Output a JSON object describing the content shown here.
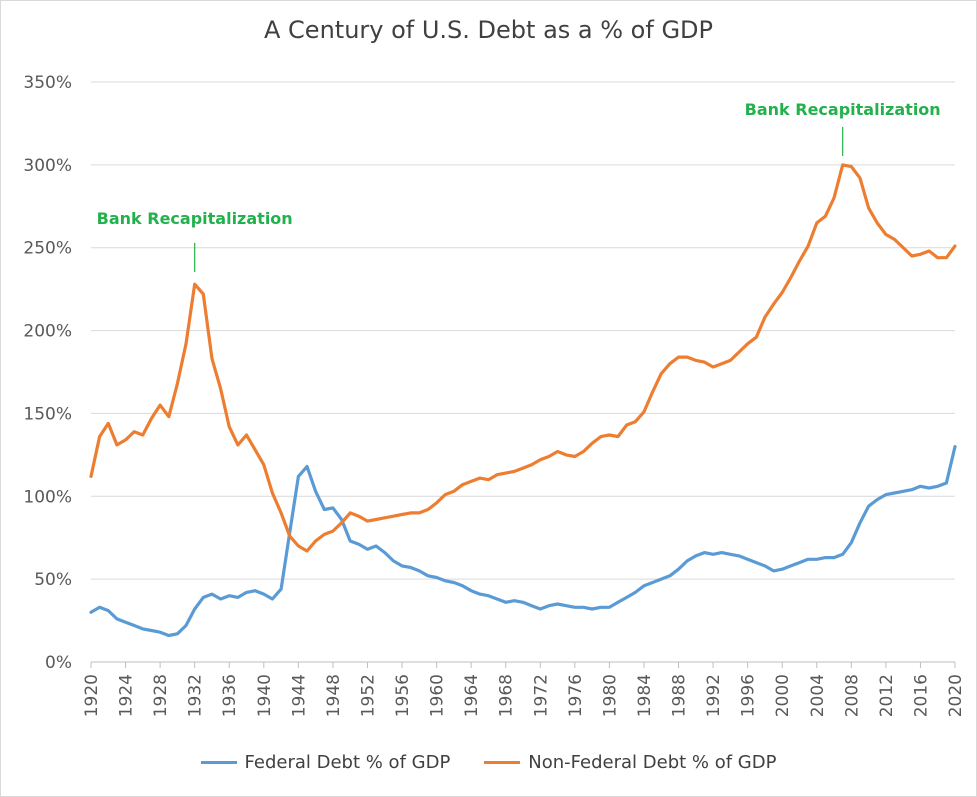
{
  "colors": {
    "federal": "#5b9bd5",
    "nonfederal": "#ed7d31",
    "annotation": "#22b14c",
    "grid": "#d9d9d9"
  },
  "chart_data": {
    "type": "line",
    "title": "A Century of U.S. Debt as a % of GDP",
    "xlabel": "",
    "ylabel": "",
    "xlim": [
      1920,
      2020
    ],
    "ylim": [
      0,
      350
    ],
    "y_ticks": [
      "0%",
      "50%",
      "100%",
      "150%",
      "200%",
      "250%",
      "300%",
      "350%"
    ],
    "x_ticks": [
      "1920",
      "1924",
      "1928",
      "1932",
      "1936",
      "1940",
      "1944",
      "1948",
      "1952",
      "1956",
      "1960",
      "1964",
      "1968",
      "1972",
      "1976",
      "1980",
      "1984",
      "1988",
      "1992",
      "1996",
      "2000",
      "2004",
      "2008",
      "2012",
      "2016",
      "2020"
    ],
    "grid": "horizontal",
    "legend_position": "bottom",
    "x": [
      1920,
      1921,
      1922,
      1923,
      1924,
      1925,
      1926,
      1927,
      1928,
      1929,
      1930,
      1931,
      1932,
      1933,
      1934,
      1935,
      1936,
      1937,
      1938,
      1939,
      1940,
      1941,
      1942,
      1943,
      1944,
      1945,
      1946,
      1947,
      1948,
      1949,
      1950,
      1951,
      1952,
      1953,
      1954,
      1955,
      1956,
      1957,
      1958,
      1959,
      1960,
      1961,
      1962,
      1963,
      1964,
      1965,
      1966,
      1967,
      1968,
      1969,
      1970,
      1971,
      1972,
      1973,
      1974,
      1975,
      1976,
      1977,
      1978,
      1979,
      1980,
      1981,
      1982,
      1983,
      1984,
      1985,
      1986,
      1987,
      1988,
      1989,
      1990,
      1991,
      1992,
      1993,
      1994,
      1995,
      1996,
      1997,
      1998,
      1999,
      2000,
      2001,
      2002,
      2003,
      2004,
      2005,
      2006,
      2007,
      2008,
      2009,
      2010,
      2011,
      2012,
      2013,
      2014,
      2015,
      2016,
      2017,
      2018,
      2019,
      2020
    ],
    "series": [
      {
        "name": "Federal Debt % of GDP",
        "color": "#5b9bd5",
        "values": [
          30,
          33,
          31,
          26,
          24,
          22,
          20,
          19,
          18,
          16,
          17,
          22,
          32,
          39,
          41,
          38,
          40,
          39,
          42,
          43,
          41,
          38,
          44,
          78,
          112,
          118,
          103,
          92,
          93,
          86,
          73,
          71,
          68,
          70,
          66,
          61,
          58,
          57,
          55,
          52,
          51,
          49,
          48,
          46,
          43,
          41,
          40,
          38,
          36,
          37,
          36,
          34,
          32,
          34,
          35,
          34,
          33,
          33,
          32,
          33,
          33,
          36,
          39,
          42,
          46,
          48,
          50,
          52,
          56,
          61,
          64,
          66,
          65,
          66,
          65,
          64,
          62,
          60,
          58,
          55,
          56,
          58,
          60,
          62,
          62,
          63,
          63,
          65,
          72,
          84,
          94,
          98,
          101,
          102,
          103,
          104,
          106,
          105,
          106,
          108,
          130
        ]
      },
      {
        "name": "Non-Federal Debt % of GDP",
        "color": "#ed7d31",
        "values": [
          112,
          136,
          144,
          131,
          134,
          139,
          137,
          147,
          155,
          148,
          168,
          192,
          228,
          222,
          183,
          165,
          142,
          131,
          137,
          128,
          119,
          102,
          90,
          76,
          70,
          67,
          73,
          77,
          79,
          84,
          90,
          88,
          85,
          86,
          87,
          88,
          89,
          90,
          90,
          92,
          96,
          101,
          103,
          107,
          109,
          111,
          110,
          113,
          114,
          115,
          117,
          119,
          122,
          124,
          127,
          125,
          124,
          127,
          132,
          136,
          137,
          136,
          143,
          145,
          151,
          163,
          174,
          180,
          184,
          184,
          182,
          181,
          178,
          180,
          182,
          187,
          192,
          196,
          208,
          216,
          223,
          232,
          242,
          251,
          265,
          269,
          280,
          300,
          299,
          292,
          274,
          265,
          258,
          255,
          250,
          245,
          246,
          248,
          244,
          244,
          251
        ]
      }
    ],
    "annotations": [
      {
        "text": "Bank Recapitalization",
        "x": 1932,
        "y": 228
      },
      {
        "text": "Bank Recapitalization",
        "x": 2007,
        "y": 300
      }
    ]
  }
}
